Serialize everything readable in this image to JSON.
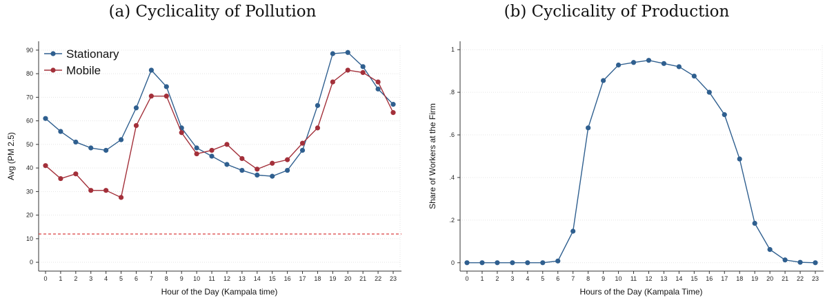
{
  "panels": {
    "a": {
      "title": "(a) Cyclicality of Pollution"
    },
    "b": {
      "title": "(b) Cyclicality of Production"
    }
  },
  "colors": {
    "stationary": "#2f5f8f",
    "mobile": "#a3303a",
    "reference": "#d62728",
    "grid": "#e3e3e3"
  },
  "chart_data": [
    {
      "type": "line",
      "title": "(a) Cyclicality of Pollution",
      "xlabel": "Hour of the Day (Kampala time)",
      "ylabel": "Avg (PM 2.5)",
      "x": [
        0,
        1,
        2,
        3,
        4,
        5,
        6,
        7,
        8,
        9,
        10,
        11,
        12,
        13,
        14,
        15,
        16,
        17,
        18,
        19,
        20,
        21,
        22,
        23
      ],
      "xticks": [
        "0",
        "1",
        "2",
        "3",
        "4",
        "5",
        "6",
        "7",
        "8",
        "9",
        "10",
        "11",
        "12",
        "13",
        "14",
        "15",
        "16",
        "17",
        "18",
        "19",
        "20",
        "21",
        "22",
        "23"
      ],
      "yticks": [
        "0",
        "10",
        "20",
        "30",
        "40",
        "50",
        "60",
        "70",
        "80",
        "90"
      ],
      "ylim": [
        -2,
        92
      ],
      "grid": true,
      "legend": "top-left",
      "reference_line": {
        "y": 12,
        "style": "dashed"
      },
      "series": [
        {
          "name": "Stationary",
          "values": [
            61,
            55.5,
            51,
            48.5,
            47.5,
            52,
            65.5,
            81.5,
            74.5,
            57,
            48.5,
            45,
            41.5,
            39,
            37,
            36.5,
            39,
            47.5,
            66.5,
            88.5,
            89,
            83,
            73.5,
            67
          ]
        },
        {
          "name": "Mobile",
          "values": [
            41,
            35.5,
            37.5,
            30.5,
            30.5,
            27.5,
            58,
            70.5,
            70.5,
            55,
            46,
            47.5,
            50,
            44,
            39.5,
            42,
            43.5,
            50.5,
            57,
            76.5,
            81.5,
            80.5,
            76.5,
            63.5
          ]
        }
      ]
    },
    {
      "type": "line",
      "title": "(b) Cyclicality of Production",
      "xlabel": "Hours of the Day (Kampala Time)",
      "ylabel": "Share of Workers at the Firm",
      "x": [
        0,
        1,
        2,
        3,
        4,
        5,
        6,
        7,
        8,
        9,
        10,
        11,
        12,
        13,
        14,
        15,
        16,
        17,
        18,
        19,
        20,
        21,
        22,
        23
      ],
      "xticks": [
        "0",
        "1",
        "2",
        "3",
        "4",
        "5",
        "6",
        "7",
        "8",
        "9",
        "10",
        "11",
        "12",
        "13",
        "14",
        "15",
        "16",
        "17",
        "18",
        "19",
        "20",
        "21",
        "22",
        "23"
      ],
      "yticks": [
        "0",
        ".2",
        ".4",
        ".6",
        ".8",
        "1"
      ],
      "ylim": [
        -0.02,
        1.02
      ],
      "grid": true,
      "series": [
        {
          "values": [
            0,
            0,
            0,
            0,
            0,
            0,
            0.008,
            0.148,
            0.633,
            0.855,
            0.928,
            0.94,
            0.95,
            0.935,
            0.92,
            0.876,
            0.8,
            0.695,
            0.487,
            0.185,
            0.062,
            0.013,
            0.002,
            0
          ]
        }
      ]
    }
  ]
}
